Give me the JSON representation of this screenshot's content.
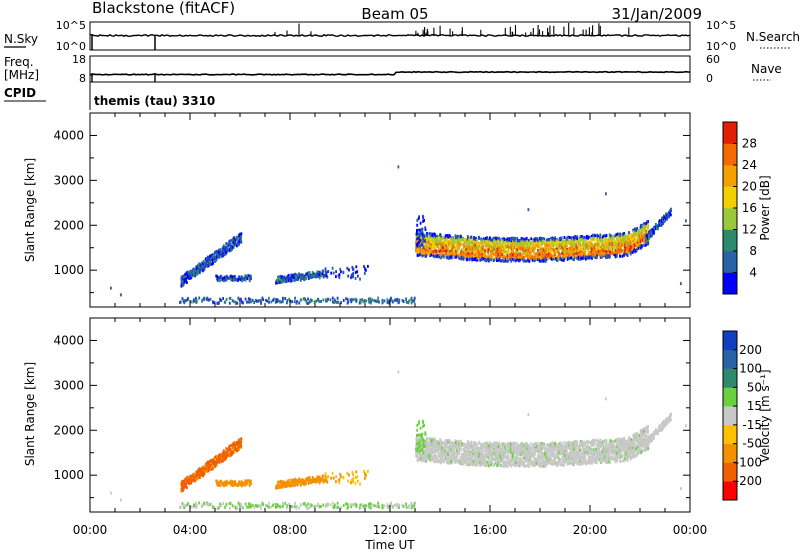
{
  "header": {
    "title_left": "Blackstone (fitACF)",
    "title_center": "Beam 05",
    "title_right": "31/Jan/2009"
  },
  "noise_panel": {
    "left_label": "N.Sky",
    "left_ticks": [
      "10^5",
      "10^0"
    ],
    "right_ticks": [
      "10^5",
      "10^0"
    ],
    "right_label": "N.Search"
  },
  "freq_panel": {
    "left_label_1": "Freq.",
    "left_label_2": "[MHz]",
    "left_ticks": [
      "18",
      "8"
    ],
    "right_ticks": [
      "60",
      "0"
    ],
    "right_label": "Nave"
  },
  "cpid": {
    "label": "CPID",
    "text": "themis (tau) 3310"
  },
  "colors": {
    "power": [
      "#0000ff",
      "#1f3cc8",
      "#2a62a8",
      "#2e8a6c",
      "#4aa64a",
      "#9ac83a",
      "#f2d000",
      "#f5a000",
      "#f56a00",
      "#e02000",
      "#ff0000"
    ],
    "velocity": [
      "#ff0000",
      "#f06000",
      "#f59000",
      "#ffc000",
      "#c8c8c8",
      "#6ad040",
      "#2e8a6c",
      "#2a62a8",
      "#1040c0"
    ],
    "noise_line": "#000000"
  },
  "chart_data": [
    {
      "type": "heatmap",
      "name": "power",
      "ylabel": "Slant Range [km]",
      "ylim": [
        180,
        4500
      ],
      "yticks": [
        "1000",
        "2000",
        "3000",
        "4000"
      ],
      "ytick_values": [
        1000,
        2000,
        3000,
        4000
      ],
      "xlim_hours": [
        0,
        24
      ],
      "colorbar": {
        "label": "Power [dB]",
        "range": [
          0,
          32
        ],
        "ticks": [
          "4",
          "8",
          "12",
          "16",
          "20",
          "24",
          "28"
        ],
        "tick_values": [
          4,
          8,
          12,
          16,
          20,
          24,
          28
        ]
      }
    },
    {
      "type": "heatmap",
      "name": "velocity",
      "ylabel": "Slant Range [km]",
      "ylim": [
        180,
        4500
      ],
      "yticks": [
        "1000",
        "2000",
        "3000",
        "4000"
      ],
      "ytick_values": [
        1000,
        2000,
        3000,
        4000
      ],
      "xlabel": "Time UT",
      "xlim_hours": [
        0,
        24
      ],
      "xticks": [
        "00:00",
        "04:00",
        "08:00",
        "12:00",
        "16:00",
        "20:00",
        "00:00"
      ],
      "xtick_values": [
        0,
        4,
        8,
        12,
        16,
        20,
        24
      ],
      "colorbar": {
        "label": "Velocity [m s⁻¹]",
        "ticks": [
          "200",
          "100",
          "50",
          "15",
          "-15",
          "-50",
          "-100",
          "-200"
        ],
        "bins": [
          "<-200",
          "-200..-100",
          "-100..-50",
          "-50..-15",
          "-15..15",
          "15..50",
          "50..100",
          "100..200",
          ">200"
        ]
      }
    }
  ]
}
